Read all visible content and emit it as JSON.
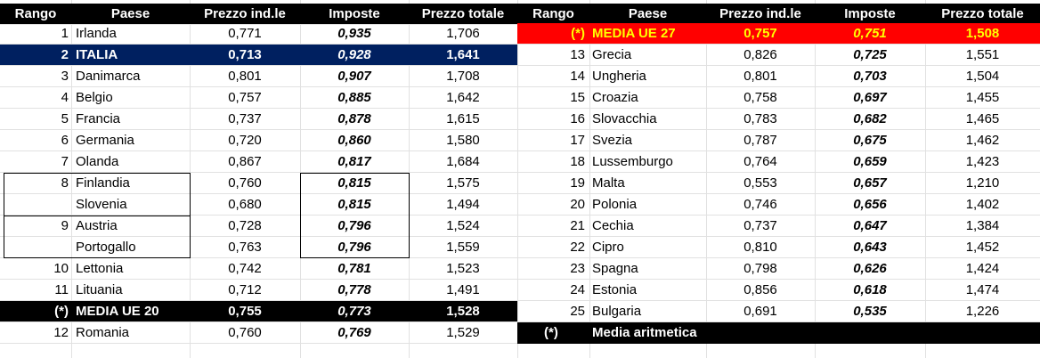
{
  "headers": [
    "Rango",
    "Paese",
    "Prezzo ind.le",
    "Imposte",
    "Prezzo totale"
  ],
  "left_rows": [
    {
      "rank": "1",
      "country": "Irlanda",
      "price": "0,771",
      "tax": "0,935",
      "total": "1,706",
      "style": ""
    },
    {
      "rank": "2",
      "country": "ITALIA",
      "price": "0,713",
      "tax": "0,928",
      "total": "1,641",
      "style": "blue"
    },
    {
      "rank": "3",
      "country": "Danimarca",
      "price": "0,801",
      "tax": "0,907",
      "total": "1,708",
      "style": ""
    },
    {
      "rank": "4",
      "country": "Belgio",
      "price": "0,757",
      "tax": "0,885",
      "total": "1,642",
      "style": ""
    },
    {
      "rank": "5",
      "country": "Francia",
      "price": "0,737",
      "tax": "0,878",
      "total": "1,615",
      "style": ""
    },
    {
      "rank": "6",
      "country": "Germania",
      "price": "0,720",
      "tax": "0,860",
      "total": "1,580",
      "style": ""
    },
    {
      "rank": "7",
      "country": "Olanda",
      "price": "0,867",
      "tax": "0,817",
      "total": "1,684",
      "style": ""
    },
    {
      "rank": "8",
      "country": "Finlandia",
      "price": "0,760",
      "tax": "0,815",
      "total": "1,575",
      "style": ""
    },
    {
      "rank": "",
      "country": "Slovenia",
      "price": "0,680",
      "tax": "0,815",
      "total": "1,494",
      "style": ""
    },
    {
      "rank": "9",
      "country": "Austria",
      "price": "0,728",
      "tax": "0,796",
      "total": "1,524",
      "style": ""
    },
    {
      "rank": "",
      "country": "Portogallo",
      "price": "0,763",
      "tax": "0,796",
      "total": "1,559",
      "style": ""
    },
    {
      "rank": "10",
      "country": "Lettonia",
      "price": "0,742",
      "tax": "0,781",
      "total": "1,523",
      "style": ""
    },
    {
      "rank": "11",
      "country": "Lituania",
      "price": "0,712",
      "tax": "0,778",
      "total": "1,491",
      "style": ""
    },
    {
      "rank": "(*)",
      "country": "MEDIA UE 20",
      "price": "0,755",
      "tax": "0,773",
      "total": "1,528",
      "style": "black"
    },
    {
      "rank": "12",
      "country": "Romania",
      "price": "0,760",
      "tax": "0,769",
      "total": "1,529",
      "style": ""
    }
  ],
  "right_rows": [
    {
      "rank": "(*)",
      "country": "MEDIA UE 27",
      "price": "0,757",
      "tax": "0,751",
      "total": "1,508",
      "style": "red"
    },
    {
      "rank": "13",
      "country": "Grecia",
      "price": "0,826",
      "tax": "0,725",
      "total": "1,551",
      "style": ""
    },
    {
      "rank": "14",
      "country": "Ungheria",
      "price": "0,801",
      "tax": "0,703",
      "total": "1,504",
      "style": ""
    },
    {
      "rank": "15",
      "country": "Croazia",
      "price": "0,758",
      "tax": "0,697",
      "total": "1,455",
      "style": ""
    },
    {
      "rank": "16",
      "country": "Slovacchia",
      "price": "0,783",
      "tax": "0,682",
      "total": "1,465",
      "style": ""
    },
    {
      "rank": "17",
      "country": "Svezia",
      "price": "0,787",
      "tax": "0,675",
      "total": "1,462",
      "style": ""
    },
    {
      "rank": "18",
      "country": "Lussemburgo",
      "price": "0,764",
      "tax": "0,659",
      "total": "1,423",
      "style": ""
    },
    {
      "rank": "19",
      "country": "Malta",
      "price": "0,553",
      "tax": "0,657",
      "total": "1,210",
      "style": ""
    },
    {
      "rank": "20",
      "country": "Polonia",
      "price": "0,746",
      "tax": "0,656",
      "total": "1,402",
      "style": ""
    },
    {
      "rank": "21",
      "country": "Cechia",
      "price": "0,737",
      "tax": "0,647",
      "total": "1,384",
      "style": ""
    },
    {
      "rank": "22",
      "country": "Cipro",
      "price": "0,810",
      "tax": "0,643",
      "total": "1,452",
      "style": ""
    },
    {
      "rank": "23",
      "country": "Spagna",
      "price": "0,798",
      "tax": "0,626",
      "total": "1,424",
      "style": ""
    },
    {
      "rank": "24",
      "country": "Estonia",
      "price": "0,856",
      "tax": "0,618",
      "total": "1,474",
      "style": ""
    },
    {
      "rank": "25",
      "country": "Bulgaria",
      "price": "0,691",
      "tax": "0,535",
      "total": "1,226",
      "style": ""
    }
  ],
  "footnote": {
    "mark": "(*)",
    "text": "Media aritmetica"
  },
  "colors": {
    "italia_bg": "#002060",
    "media_ue27_bg": "#ff0000",
    "media_ue27_text": "#ffff00",
    "header_bg": "#000000"
  }
}
